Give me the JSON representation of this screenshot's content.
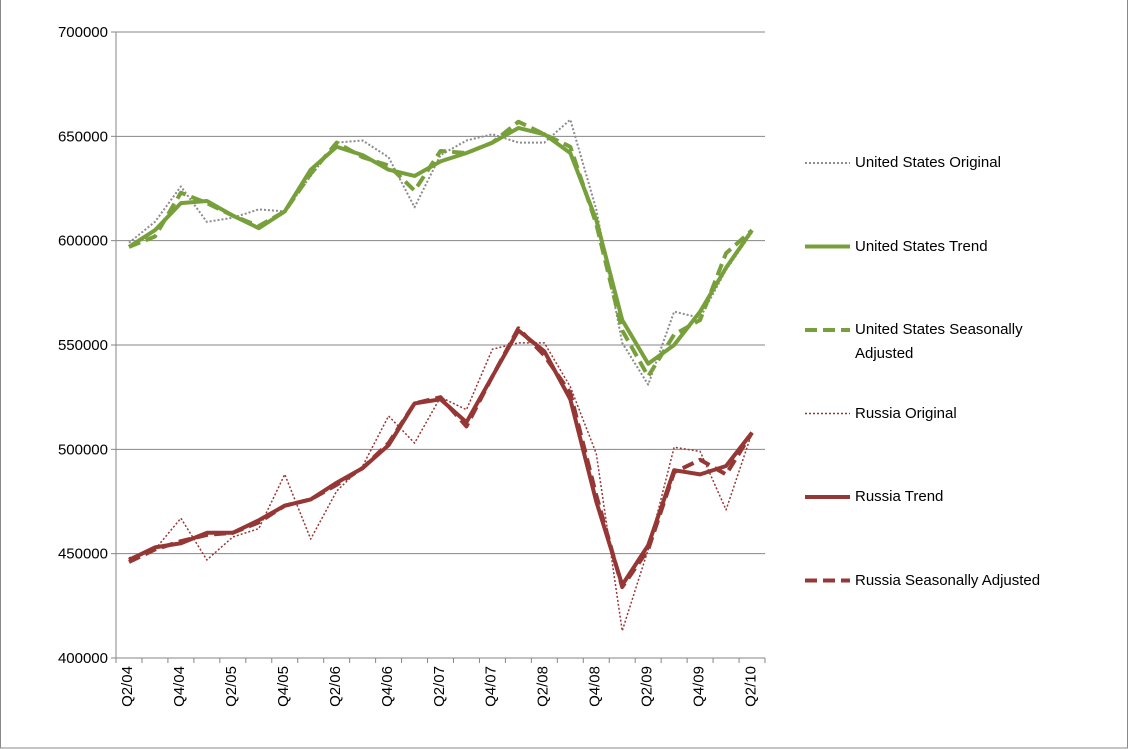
{
  "chart_data": {
    "type": "line",
    "categories": [
      "Q2/04",
      null,
      "Q4/04",
      null,
      "Q2/05",
      null,
      "Q4/05",
      null,
      "Q2/06",
      null,
      "Q4/06",
      null,
      "Q2/07",
      null,
      "Q4/07",
      null,
      "Q2/08",
      null,
      "Q4/08",
      null,
      "Q2/09",
      null,
      "Q4/09",
      null,
      "Q2/10"
    ],
    "ylim": [
      400000,
      700000
    ],
    "yticks": [
      400000,
      450000,
      500000,
      550000,
      600000,
      650000,
      700000
    ],
    "grid": true,
    "legend": "right",
    "series": [
      {
        "name": "United States Original",
        "color": "#8c8c8c",
        "line_style": "dotted",
        "values": [
          599000,
          609000,
          626000,
          609000,
          611000,
          615000,
          614000,
          631000,
          647000,
          648000,
          640000,
          616000,
          641000,
          648000,
          651000,
          647000,
          647000,
          658000,
          615000,
          551000,
          531000,
          566000,
          563000,
          586000,
          604000
        ]
      },
      {
        "name": "United States Trend",
        "color": "#77a03b",
        "line_style": "solid",
        "values": [
          597000,
          605000,
          618000,
          619000,
          612000,
          606000,
          614000,
          634000,
          645000,
          641000,
          634000,
          631000,
          638000,
          642000,
          647000,
          654000,
          651000,
          642000,
          610000,
          562000,
          541000,
          550000,
          566000,
          587000,
          605000
        ]
      },
      {
        "name": "United States Seasonally Adjusted",
        "color": "#77a03b",
        "line_style": "dashed",
        "values": [
          597000,
          602000,
          623000,
          618000,
          612000,
          607000,
          614000,
          632000,
          647000,
          640000,
          636000,
          624000,
          643000,
          642000,
          647000,
          657000,
          651000,
          645000,
          608000,
          557000,
          535000,
          555000,
          562000,
          594000,
          605000
        ]
      },
      {
        "name": "Russia Original",
        "color": "#953735",
        "line_style": "dotted",
        "values": [
          448000,
          452000,
          467000,
          447000,
          458000,
          462000,
          488000,
          457000,
          480000,
          492000,
          516000,
          503000,
          525000,
          519000,
          548000,
          551000,
          551000,
          530000,
          498000,
          413000,
          452000,
          501000,
          499000,
          471000,
          508000
        ]
      },
      {
        "name": "Russia Trend",
        "color": "#953735",
        "line_style": "solid",
        "values": [
          447000,
          453000,
          455000,
          460000,
          460000,
          466000,
          473000,
          476000,
          484000,
          491000,
          502000,
          522000,
          524000,
          513000,
          535000,
          557000,
          547000,
          524000,
          475000,
          435000,
          454000,
          490000,
          488000,
          492000,
          508000
        ]
      },
      {
        "name": "Russia Seasonally Adjusted",
        "color": "#953735",
        "line_style": "dashed",
        "values": [
          446000,
          452000,
          456000,
          459000,
          460000,
          465000,
          473000,
          476000,
          483000,
          491000,
          503000,
          522000,
          525000,
          511000,
          535000,
          558000,
          545000,
          527000,
          478000,
          434000,
          452000,
          489000,
          495000,
          488000,
          508000
        ]
      }
    ]
  }
}
